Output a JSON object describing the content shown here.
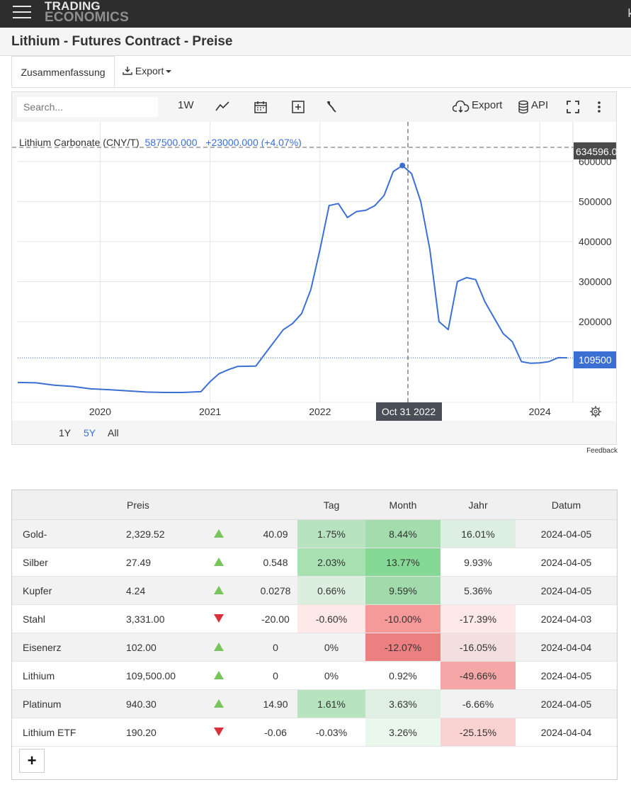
{
  "header": {
    "logo_line1": "TRADING",
    "logo_line2": "ECONOMICS",
    "cut_text": "k"
  },
  "page_title": "Lithium - Futures Contract - Preise",
  "tabs": {
    "summary": "Zusammenfassung",
    "export": "Export"
  },
  "toolbar": {
    "search_placeholder": "Search...",
    "interval": "1W",
    "export": "Export",
    "api": "API"
  },
  "chart_legend": {
    "series": "Lithium Carbonate (CNY/T)",
    "value": "587500.000",
    "change": "+23000.000 (+4.07%)"
  },
  "crosshair": {
    "y_label": "634596.0",
    "x_label": "Oct 31 2022"
  },
  "current_price_label": "109500",
  "range_buttons": [
    "1Y",
    "5Y",
    "All"
  ],
  "active_range": "5Y",
  "feedback": "Feedback",
  "colors": {
    "line": "#3b6fd4",
    "header_bg": "#2d2d2d",
    "up": "#7ac55b",
    "down": "#d9323b"
  },
  "chart_data": {
    "type": "line",
    "series": [
      {
        "name": "Lithium Carbonate (CNY/T)"
      }
    ],
    "x": [
      "2019-04",
      "2019-06",
      "2019-08",
      "2019-10",
      "2019-12",
      "2020-02",
      "2020-04",
      "2020-06",
      "2020-08",
      "2020-10",
      "2020-12",
      "2021-01",
      "2021-02",
      "2021-03",
      "2021-04",
      "2021-06",
      "2021-08",
      "2021-09",
      "2021-10",
      "2021-11",
      "2021-12",
      "2022-01",
      "2022-02",
      "2022-03",
      "2022-04",
      "2022-05",
      "2022-06",
      "2022-07",
      "2022-08",
      "2022-09",
      "2022-10",
      "2022-11",
      "2022-12",
      "2023-01",
      "2023-02",
      "2023-03",
      "2023-04",
      "2023-05",
      "2023-06",
      "2023-07",
      "2023-08",
      "2023-09",
      "2023-10",
      "2023-11",
      "2023-12",
      "2024-01",
      "2024-02",
      "2024-03",
      "2024-04"
    ],
    "y": [
      48000,
      47000,
      41000,
      38000,
      32000,
      30000,
      27000,
      24000,
      23000,
      23000,
      25000,
      50000,
      70000,
      80000,
      88000,
      89000,
      150000,
      180000,
      195000,
      220000,
      280000,
      380000,
      490000,
      495000,
      460000,
      475000,
      478000,
      490000,
      515000,
      575000,
      590000,
      570000,
      500000,
      380000,
      200000,
      180000,
      300000,
      310000,
      305000,
      250000,
      210000,
      170000,
      150000,
      100000,
      96000,
      97000,
      100000,
      110000,
      109500
    ],
    "xticks": [
      "2020",
      "2021",
      "2022",
      "2024"
    ],
    "yticks": [
      "600000",
      "500000",
      "400000",
      "300000",
      "200000"
    ],
    "ylim": [
      0,
      700000
    ],
    "grid": true
  },
  "table": {
    "headers": [
      "",
      "Preis",
      "",
      "",
      "Tag",
      "Month",
      "Jahr",
      "Datum"
    ],
    "rows": [
      {
        "name": "Gold-",
        "price": "2,329.52",
        "dir": "up",
        "chg": "40.09",
        "tag": "1.75%",
        "month": "8.44%",
        "jahr": "16.01%",
        "date": "2024-04-05",
        "tag_bg": "#b8e3c0",
        "month_bg": "#a3dcad",
        "jahr_bg": "#ddefe0"
      },
      {
        "name": "Silber",
        "price": "27.49",
        "dir": "up",
        "chg": "0.548",
        "tag": "2.03%",
        "month": "13.77%",
        "jahr": "9.93%",
        "date": "2024-04-05",
        "tag_bg": "#a7e0b1",
        "month_bg": "#86d995",
        "jahr_bg": ""
      },
      {
        "name": "Kupfer",
        "price": "4.24",
        "dir": "up",
        "chg": "0.0278",
        "tag": "0.66%",
        "month": "9.59%",
        "jahr": "5.36%",
        "date": "2024-04-05",
        "tag_bg": "#dcefdf",
        "month_bg": "#a1dbab",
        "jahr_bg": ""
      },
      {
        "name": "Stahl",
        "price": "3,331.00",
        "dir": "down",
        "chg": "-20.00",
        "tag": "-0.60%",
        "month": "-10.00%",
        "jahr": "-17.39%",
        "date": "2024-04-03",
        "tag_bg": "#fde8e8",
        "month_bg": "#f59999",
        "jahr_bg": "#fde8e8"
      },
      {
        "name": "Eisenerz",
        "price": "102.00",
        "dir": "up",
        "chg": "0",
        "tag": "0%",
        "month": "-12.07%",
        "jahr": "-16.05%",
        "date": "2024-04-04",
        "tag_bg": "",
        "month_bg": "#ec7f7f",
        "jahr_bg": "#f2dede"
      },
      {
        "name": "Lithium",
        "price": "109,500.00",
        "dir": "up",
        "chg": "0",
        "tag": "0%",
        "month": "0.92%",
        "jahr": "-49.66%",
        "date": "2024-04-05",
        "tag_bg": "",
        "month_bg": "",
        "jahr_bg": "#f5a6a6"
      },
      {
        "name": "Platinum",
        "price": "940.30",
        "dir": "up",
        "chg": "14.90",
        "tag": "1.61%",
        "month": "3.63%",
        "jahr": "-6.66%",
        "date": "2024-04-05",
        "tag_bg": "#b7e3bf",
        "month_bg": "#dfefe1",
        "jahr_bg": ""
      },
      {
        "name": "Lithium ETF",
        "price": "190.20",
        "dir": "down",
        "chg": "-0.06",
        "tag": "-0.03%",
        "month": "3.26%",
        "jahr": "-25.15%",
        "date": "2024-04-04",
        "tag_bg": "",
        "month_bg": "#eaf7ec",
        "jahr_bg": "#fbd2d2"
      }
    ],
    "add_button": "+"
  }
}
